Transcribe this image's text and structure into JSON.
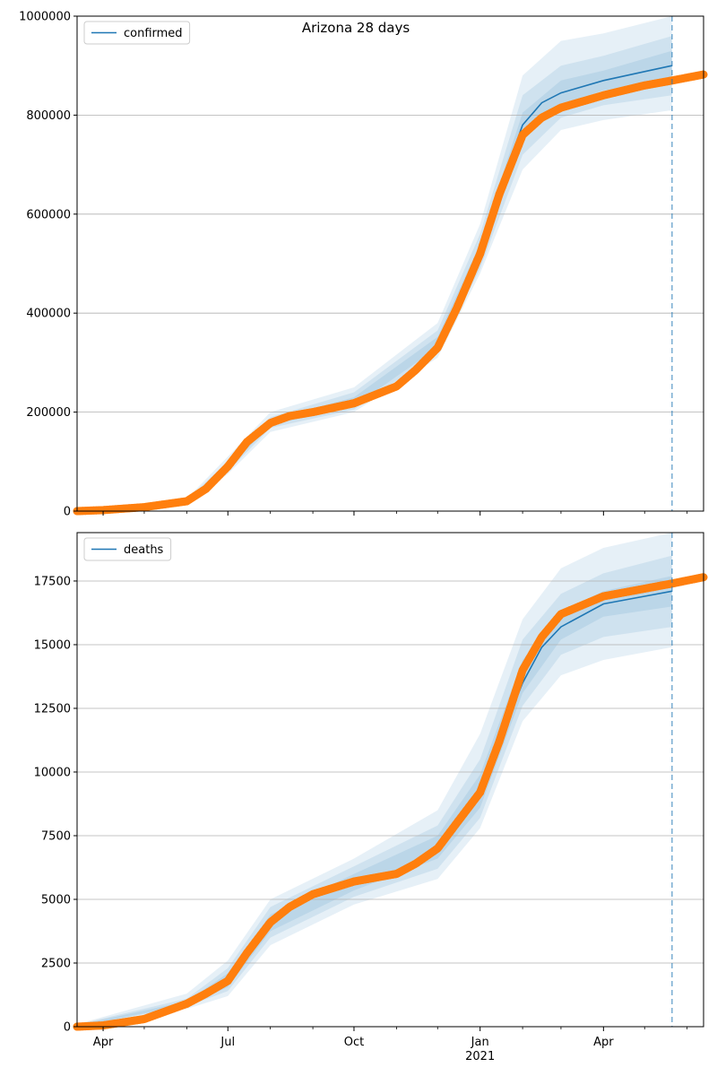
{
  "title": "Arizona 28 days",
  "colors": {
    "model": "#1f77b4",
    "observed": "#ff7f0e",
    "band": "#1f77b4",
    "grid": "#b0b0b0",
    "axis": "#000000"
  },
  "x_axis": {
    "domain": [
      "2020-03-13",
      "2021-06-13"
    ],
    "forecast_date": "2021-05-21",
    "major_ticks": [
      {
        "date": "2020-04-01",
        "label": "Apr",
        "sublabel": ""
      },
      {
        "date": "2020-07-01",
        "label": "Jul",
        "sublabel": ""
      },
      {
        "date": "2020-10-01",
        "label": "Oct",
        "sublabel": ""
      },
      {
        "date": "2021-01-01",
        "label": "Jan",
        "sublabel": "2021"
      },
      {
        "date": "2021-04-01",
        "label": "Apr",
        "sublabel": ""
      }
    ],
    "minor_ticks": [
      "2020-05-01",
      "2020-06-01",
      "2020-08-01",
      "2020-09-01",
      "2020-11-01",
      "2020-12-01",
      "2021-02-01",
      "2021-03-01",
      "2021-05-01",
      "2021-06-01"
    ]
  },
  "chart_data": [
    {
      "type": "line",
      "series": [
        {
          "name": "confirmed",
          "role": "model",
          "x": [
            "2020-03-13",
            "2020-04-01",
            "2020-05-01",
            "2020-06-01",
            "2020-06-15",
            "2020-07-01",
            "2020-07-15",
            "2020-08-01",
            "2020-08-15",
            "2020-09-01",
            "2020-10-01",
            "2020-11-01",
            "2020-11-15",
            "2020-12-01",
            "2020-12-15",
            "2021-01-01",
            "2021-01-15",
            "2021-02-01",
            "2021-02-15",
            "2021-03-01",
            "2021-04-01",
            "2021-05-01",
            "2021-05-21"
          ],
          "y": [
            0,
            2000,
            8000,
            20000,
            45000,
            90000,
            140000,
            178000,
            192000,
            200000,
            220000,
            255000,
            290000,
            340000,
            420000,
            520000,
            650000,
            780000,
            825000,
            845000,
            870000,
            888000,
            900000
          ]
        },
        {
          "name": "",
          "role": "observed",
          "x": [
            "2020-03-13",
            "2020-04-01",
            "2020-05-01",
            "2020-06-01",
            "2020-06-15",
            "2020-07-01",
            "2020-07-15",
            "2020-08-01",
            "2020-08-15",
            "2020-09-01",
            "2020-10-01",
            "2020-11-01",
            "2020-11-15",
            "2020-12-01",
            "2020-12-15",
            "2021-01-01",
            "2021-01-15",
            "2021-02-01",
            "2021-02-15",
            "2021-03-01",
            "2021-04-01",
            "2021-05-01",
            "2021-05-21",
            "2021-06-13"
          ],
          "y": [
            0,
            2000,
            8000,
            20000,
            45000,
            90000,
            140000,
            178000,
            192000,
            200000,
            218000,
            252000,
            285000,
            330000,
            410000,
            520000,
            640000,
            760000,
            795000,
            815000,
            840000,
            860000,
            870000,
            882000
          ]
        }
      ],
      "bands": [
        {
          "x": [
            "2020-03-13",
            "2020-06-01",
            "2020-07-01",
            "2020-08-01",
            "2020-10-01",
            "2020-12-01",
            "2021-01-01",
            "2021-02-01",
            "2021-03-01",
            "2021-04-01",
            "2021-05-21"
          ],
          "lower": [
            0,
            15000,
            75000,
            160000,
            200000,
            310000,
            480000,
            690000,
            770000,
            790000,
            810000
          ],
          "upper": [
            0,
            25000,
            110000,
            200000,
            250000,
            380000,
            580000,
            880000,
            950000,
            965000,
            1000000
          ]
        },
        {
          "x": [
            "2020-03-13",
            "2020-06-01",
            "2020-07-01",
            "2020-08-01",
            "2020-10-01",
            "2020-12-01",
            "2021-01-01",
            "2021-02-01",
            "2021-03-01",
            "2021-04-01",
            "2021-05-21"
          ],
          "lower": [
            0,
            17000,
            80000,
            168000,
            205000,
            320000,
            490000,
            720000,
            795000,
            820000,
            840000
          ],
          "upper": [
            0,
            23000,
            100000,
            190000,
            240000,
            365000,
            560000,
            840000,
            900000,
            920000,
            960000
          ]
        },
        {
          "x": [
            "2020-03-13",
            "2020-06-01",
            "2020-07-01",
            "2020-08-01",
            "2020-10-01",
            "2020-12-01",
            "2021-01-01",
            "2021-02-01",
            "2021-03-01",
            "2021-04-01",
            "2021-05-21"
          ],
          "lower": [
            0,
            18500,
            85000,
            174000,
            212000,
            330000,
            505000,
            755000,
            820000,
            850000,
            870000
          ],
          "upper": [
            0,
            21500,
            95000,
            184000,
            230000,
            352000,
            540000,
            805000,
            870000,
            890000,
            930000
          ]
        }
      ],
      "ylim": [
        0,
        1000000
      ],
      "yticks": [
        0,
        200000,
        400000,
        600000,
        800000,
        1000000
      ],
      "grid": "horizontal",
      "legend": {
        "position": "top-left"
      }
    },
    {
      "type": "line",
      "series": [
        {
          "name": "deaths",
          "role": "model",
          "x": [
            "2020-03-13",
            "2020-04-01",
            "2020-05-01",
            "2020-06-01",
            "2020-06-15",
            "2020-07-01",
            "2020-07-15",
            "2020-08-01",
            "2020-08-15",
            "2020-09-01",
            "2020-10-01",
            "2020-11-01",
            "2020-11-15",
            "2020-12-01",
            "2020-12-15",
            "2021-01-01",
            "2021-01-15",
            "2021-02-01",
            "2021-02-15",
            "2021-03-01",
            "2021-04-01",
            "2021-05-01",
            "2021-05-21"
          ],
          "y": [
            0,
            50,
            300,
            900,
            1300,
            1800,
            2800,
            4000,
            4600,
            5100,
            5700,
            6000,
            6400,
            7000,
            8000,
            9000,
            11200,
            13500,
            14900,
            15700,
            16600,
            16900,
            17100
          ]
        },
        {
          "name": "",
          "role": "observed",
          "x": [
            "2020-03-13",
            "2020-04-01",
            "2020-05-01",
            "2020-06-01",
            "2020-06-15",
            "2020-07-01",
            "2020-07-15",
            "2020-08-01",
            "2020-08-15",
            "2020-09-01",
            "2020-10-01",
            "2020-11-01",
            "2020-11-15",
            "2020-12-01",
            "2020-12-15",
            "2021-01-01",
            "2021-01-15",
            "2021-02-01",
            "2021-02-15",
            "2021-03-01",
            "2021-04-01",
            "2021-05-01",
            "2021-05-21",
            "2021-06-13"
          ],
          "y": [
            0,
            50,
            300,
            900,
            1300,
            1800,
            2900,
            4100,
            4700,
            5200,
            5700,
            6000,
            6400,
            7000,
            8000,
            9200,
            11200,
            14000,
            15300,
            16200,
            16900,
            17200,
            17400,
            17650
          ]
        }
      ],
      "bands": [
        {
          "x": [
            "2020-03-13",
            "2020-06-01",
            "2020-07-01",
            "2020-08-01",
            "2020-10-01",
            "2020-12-01",
            "2021-01-01",
            "2021-02-01",
            "2021-03-01",
            "2021-04-01",
            "2021-05-21"
          ],
          "lower": [
            0,
            700,
            1200,
            3200,
            4800,
            5800,
            7800,
            12000,
            13800,
            14400,
            14900
          ],
          "upper": [
            100,
            1300,
            2600,
            5000,
            6600,
            8500,
            11500,
            16000,
            18000,
            18800,
            19400
          ]
        },
        {
          "x": [
            "2020-03-13",
            "2020-06-01",
            "2020-07-01",
            "2020-08-01",
            "2020-10-01",
            "2020-12-01",
            "2021-01-01",
            "2021-02-01",
            "2021-03-01",
            "2021-04-01",
            "2021-05-21"
          ],
          "lower": [
            0,
            800,
            1400,
            3500,
            5100,
            6200,
            8200,
            12600,
            14600,
            15300,
            15700
          ],
          "upper": [
            80,
            1100,
            2300,
            4700,
            6300,
            7900,
            10500,
            15200,
            17000,
            17800,
            18500
          ]
        },
        {
          "x": [
            "2020-03-13",
            "2020-06-01",
            "2020-07-01",
            "2020-08-01",
            "2020-10-01",
            "2020-12-01",
            "2021-01-01",
            "2021-02-01",
            "2021-03-01",
            "2021-04-01",
            "2021-05-21"
          ],
          "lower": [
            0,
            850,
            1550,
            3750,
            5350,
            6600,
            8600,
            13100,
            15200,
            16100,
            16500
          ],
          "upper": [
            60,
            1000,
            2100,
            4400,
            6000,
            7500,
            9900,
            14400,
            16300,
            17100,
            17700
          ]
        }
      ],
      "ylim": [
        0,
        19400
      ],
      "yticks": [
        0,
        2500,
        5000,
        7500,
        10000,
        12500,
        15000,
        17500
      ],
      "grid": "horizontal",
      "legend": {
        "position": "top-left"
      }
    }
  ]
}
